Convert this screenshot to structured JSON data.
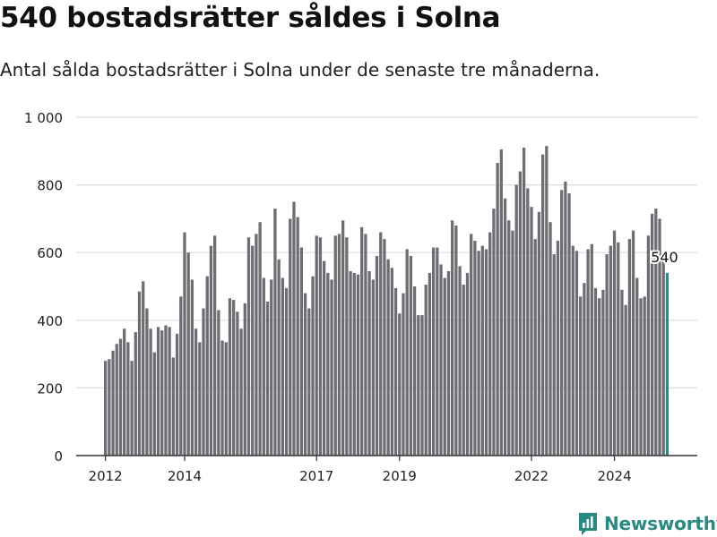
{
  "header": {
    "title": "540 bostadsrätter såldes i Solna",
    "subtitle": "Antal sålda bostadsrätter i Solna under de senaste tre månaderna."
  },
  "brand": {
    "name": "Newsworthy"
  },
  "colors": {
    "bar": "#6e6d74",
    "highlight": "#16948a",
    "grid": "#dcdcdc",
    "axis": "#333333",
    "brand": "#2a8a82"
  },
  "chart_data": {
    "type": "bar",
    "title": "540 bostadsrätter såldes i Solna",
    "subtitle": "Antal sålda bostadsrätter i Solna under de senaste tre månaderna.",
    "xlabel": "",
    "ylabel": "",
    "ylim": [
      0,
      1000
    ],
    "yticks": [
      0,
      200,
      400,
      600,
      800,
      1000
    ],
    "ytick_labels": [
      "0",
      "200",
      "400",
      "600",
      "800",
      "1 000"
    ],
    "xticks": [
      {
        "label": "2012",
        "index": 0
      },
      {
        "label": "2014",
        "index": 21
      },
      {
        "label": "2017",
        "index": 56
      },
      {
        "label": "2019",
        "index": 78
      },
      {
        "label": "2022",
        "index": 113
      },
      {
        "label": "2024",
        "index": 135
      }
    ],
    "highlight_label": "540",
    "values": [
      280,
      285,
      310,
      330,
      345,
      375,
      335,
      280,
      365,
      485,
      515,
      435,
      375,
      305,
      380,
      370,
      385,
      380,
      290,
      360,
      470,
      660,
      600,
      520,
      375,
      335,
      435,
      530,
      620,
      650,
      430,
      340,
      335,
      465,
      460,
      425,
      375,
      450,
      645,
      620,
      655,
      690,
      525,
      455,
      520,
      730,
      580,
      525,
      495,
      700,
      750,
      705,
      615,
      480,
      435,
      530,
      650,
      645,
      575,
      540,
      520,
      650,
      655,
      695,
      645,
      545,
      540,
      535,
      675,
      655,
      545,
      520,
      590,
      660,
      640,
      580,
      555,
      495,
      420,
      480,
      610,
      590,
      500,
      415,
      415,
      505,
      540,
      615,
      615,
      565,
      525,
      545,
      695,
      680,
      560,
      505,
      540,
      655,
      635,
      605,
      620,
      610,
      660,
      730,
      865,
      905,
      760,
      695,
      665,
      800,
      840,
      910,
      790,
      735,
      640,
      720,
      890,
      915,
      690,
      595,
      635,
      785,
      810,
      775,
      620,
      605,
      470,
      510,
      610,
      625,
      495,
      465,
      490,
      595,
      620,
      665,
      630,
      490,
      445,
      640,
      665,
      525,
      465,
      470,
      650,
      715,
      730,
      700,
      580,
      540
    ]
  }
}
